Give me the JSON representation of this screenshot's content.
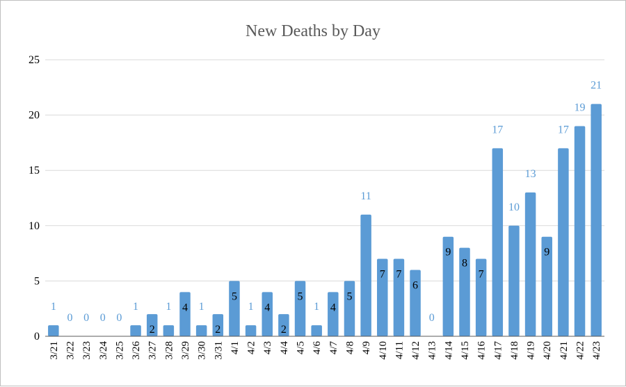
{
  "chart_data": {
    "type": "bar",
    "title": "New Deaths by Day",
    "xlabel": "",
    "ylabel": "",
    "ylim": [
      0,
      25
    ],
    "yticks": [
      "0",
      "5",
      "10",
      "15",
      "20",
      "25"
    ],
    "grid": true,
    "legend": "none",
    "bar_color": "#5b9bd5",
    "categories": [
      "3/21",
      "3/22",
      "3/23",
      "3/24",
      "3/25",
      "3/26",
      "3/27",
      "3/28",
      "3/29",
      "3/30",
      "3/31",
      "4/1",
      "4/2",
      "4/3",
      "4/4",
      "4/5",
      "4/6",
      "4/7",
      "4/8",
      "4/9",
      "4/10",
      "4/11",
      "4/12",
      "4/13",
      "4/14",
      "4/15",
      "4/16",
      "4/17",
      "4/18",
      "4/19",
      "4/20",
      "4/21",
      "4/22",
      "4/23"
    ],
    "values": [
      1,
      0,
      0,
      0,
      0,
      1,
      2,
      1,
      4,
      1,
      2,
      5,
      1,
      4,
      2,
      5,
      1,
      4,
      5,
      11,
      7,
      7,
      6,
      0,
      9,
      8,
      7,
      17,
      10,
      13,
      9,
      17,
      19,
      21
    ],
    "label_inside": [
      false,
      false,
      false,
      false,
      false,
      false,
      true,
      false,
      true,
      false,
      true,
      true,
      false,
      true,
      true,
      true,
      false,
      true,
      true,
      false,
      true,
      true,
      true,
      false,
      true,
      true,
      true,
      false,
      false,
      false,
      true,
      false,
      false,
      false
    ]
  }
}
